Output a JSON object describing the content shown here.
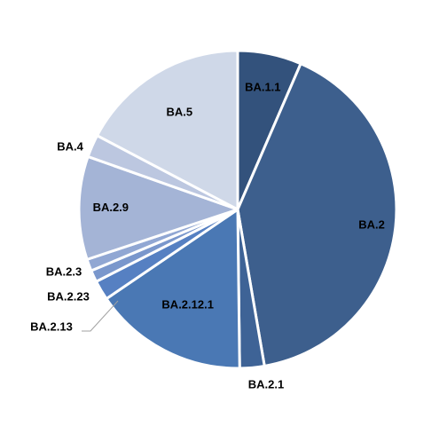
{
  "chart_data": {
    "type": "pie",
    "title": "",
    "categories": [
      "BA.1.1",
      "BA.2",
      "BA.2.1",
      "BA.2.12.1",
      "BA.2.13",
      "BA.2.23",
      "BA.2.3",
      "BA.2.9",
      "BA.4",
      "BA.5"
    ],
    "values": [
      6.5,
      40.8,
      2.5,
      15.7,
      2.0,
      1.2,
      1.2,
      10.5,
      2.3,
      17.3
    ],
    "colors": [
      "#33527c",
      "#3d5f8d",
      "#3e6396",
      "#4a78b4",
      "#5680c2",
      "#7a97cc",
      "#91a7d3",
      "#a4b4d6",
      "#bcc7e0",
      "#cfd8e8"
    ],
    "unit": "",
    "legend": "none (labels on slices)"
  }
}
